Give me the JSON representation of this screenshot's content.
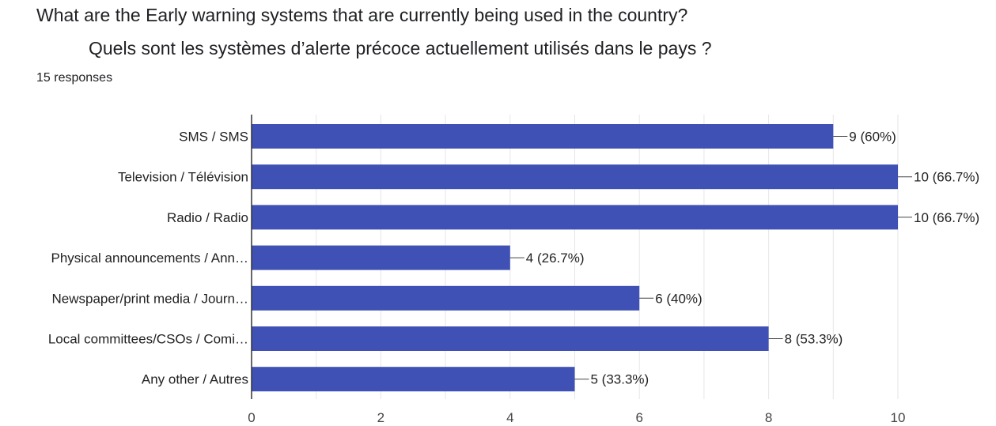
{
  "question": {
    "english": "What are the Early warning systems that are currently being used in the country?",
    "french": "Quels sont les systèmes d’alerte précoce actuellement utilisés dans le pays ?",
    "responses": "15 responses"
  },
  "colors": {
    "bar": "#3f51b5",
    "grid": "#e6e6e6",
    "axis": "#333333"
  },
  "chart_data": {
    "type": "bar",
    "orientation": "horizontal",
    "categories": [
      "SMS / SMS",
      "Television / Télévision",
      "Radio / Radio",
      "Physical announcements / Ann…",
      "Newspaper/print media / Journ…",
      "Local committees/CSOs / Comi…",
      "Any other / Autres"
    ],
    "values": [
      9,
      10,
      10,
      4,
      6,
      8,
      5
    ],
    "data_labels": [
      "9 (60%)",
      "10 (66.7%)",
      "10 (66.7%)",
      "4 (26.7%)",
      "6 (40%)",
      "8 (53.3%)",
      "5 (33.3%)"
    ],
    "x_ticks": [
      "0",
      "2",
      "4",
      "6",
      "8",
      "10"
    ],
    "xlim": [
      0,
      10
    ],
    "grid": true
  }
}
